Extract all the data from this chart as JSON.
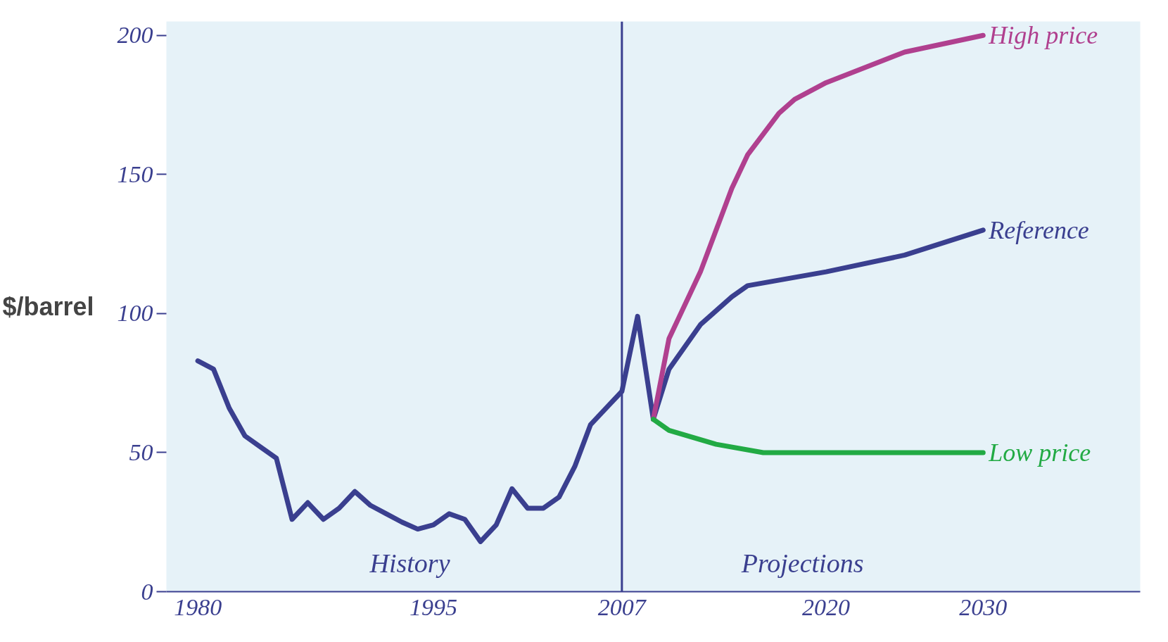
{
  "chart_data": {
    "type": "line",
    "ylabel": "$/barrel",
    "xlim": [
      1978,
      2040
    ],
    "ylim": [
      0,
      205
    ],
    "xticks": [
      1980,
      1995,
      2007,
      2020,
      2030
    ],
    "yticks": [
      0,
      50,
      100,
      150,
      200
    ],
    "grid": false,
    "marker": "none",
    "line_style": "solid",
    "ref_lines": [
      {
        "axis": "x",
        "value": 2007,
        "color": "#3a3f8f"
      }
    ],
    "annotations": [
      "History",
      "Projections"
    ],
    "series": [
      {
        "name": "Reference",
        "color": "#3a3f8f",
        "x": [
          1980,
          1981,
          1982,
          1983,
          1984,
          1985,
          1986,
          1987,
          1988,
          1989,
          1990,
          1991,
          1992,
          1993,
          1994,
          1995,
          1996,
          1997,
          1998,
          1999,
          2000,
          2001,
          2002,
          2003,
          2004,
          2005,
          2006,
          2007,
          2008,
          2009,
          2010,
          2012,
          2014,
          2015,
          2020,
          2025,
          2030
        ],
        "values": [
          83,
          80,
          66,
          56,
          52,
          48,
          26,
          32,
          26,
          30,
          36,
          31,
          28,
          25,
          22.5,
          24,
          28,
          26,
          18,
          24,
          37,
          30,
          30,
          34,
          45,
          60,
          66,
          72,
          99,
          62,
          80,
          96,
          106,
          110,
          115,
          121,
          130
        ]
      },
      {
        "name": "High price",
        "color": "#b0408f",
        "x": [
          2009,
          2010,
          2012,
          2014,
          2015,
          2017,
          2018,
          2020,
          2025,
          2030
        ],
        "values": [
          62,
          91,
          115,
          145,
          157,
          172,
          177,
          183,
          194,
          200
        ]
      },
      {
        "name": "Low price",
        "color": "#22aa44",
        "x": [
          2009,
          2010,
          2013,
          2016,
          2030
        ],
        "values": [
          62,
          58,
          53,
          50,
          50
        ]
      }
    ]
  }
}
